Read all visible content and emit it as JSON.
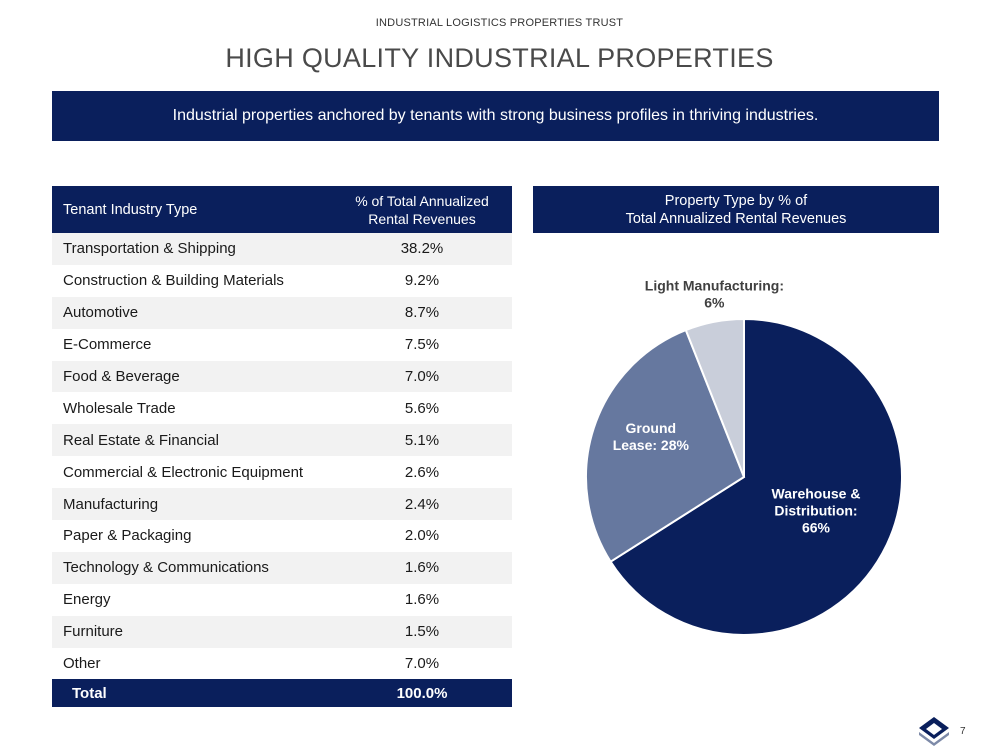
{
  "header": {
    "company": "INDUSTRIAL LOGISTICS PROPERTIES TRUST",
    "title": "HIGH QUALITY INDUSTRIAL PROPERTIES",
    "banner": "Industrial properties anchored by tenants with strong business profiles in thriving industries."
  },
  "table": {
    "col1_header": "Tenant Industry Type",
    "col2_header_line1": "% of Total Annualized",
    "col2_header_line2": "Rental Revenues",
    "rows": [
      {
        "industry": "Transportation & Shipping",
        "pct": "38.2%"
      },
      {
        "industry": "Construction & Building Materials",
        "pct": "9.2%"
      },
      {
        "industry": "Automotive",
        "pct": "8.7%"
      },
      {
        "industry": "E-Commerce",
        "pct": "7.5%"
      },
      {
        "industry": "Food & Beverage",
        "pct": "7.0%"
      },
      {
        "industry": "Wholesale Trade",
        "pct": "5.6%"
      },
      {
        "industry": "Real Estate & Financial",
        "pct": "5.1%"
      },
      {
        "industry": "Commercial & Electronic Equipment",
        "pct": "2.6%"
      },
      {
        "industry": "Manufacturing",
        "pct": "2.4%"
      },
      {
        "industry": "Paper & Packaging",
        "pct": "2.0%"
      },
      {
        "industry": "Technology & Communications",
        "pct": "1.6%"
      },
      {
        "industry": "Energy",
        "pct": "1.6%"
      },
      {
        "industry": "Furniture",
        "pct": "1.5%"
      },
      {
        "industry": "Other",
        "pct": "7.0%"
      }
    ],
    "total_label": "Total",
    "total_value": "100.0%"
  },
  "pie_header": {
    "line1": "Property Type by % of",
    "line2": "Total Annualized Rental Revenues"
  },
  "chart_data": {
    "type": "pie",
    "title": "Property Type by % of Total Annualized Rental Revenues",
    "slices": [
      {
        "label_lines": [
          "Warehouse &",
          "Distribution:",
          "66%"
        ],
        "name": "Warehouse & Distribution",
        "value": 66,
        "color": "#0a1f5c",
        "text_color": "#ffffff"
      },
      {
        "label_lines": [
          "Ground",
          "Lease: 28%"
        ],
        "name": "Ground Lease",
        "value": 28,
        "color": "#66789f",
        "text_color": "#ffffff"
      },
      {
        "label_lines": [
          "Light Manufacturing:",
          "6%"
        ],
        "name": "Light Manufacturing",
        "value": 6,
        "color": "#c9ceda",
        "text_color": "#404040"
      }
    ]
  },
  "footer": {
    "page_number": "7"
  },
  "colors": {
    "navy": "#0a1f5c"
  }
}
